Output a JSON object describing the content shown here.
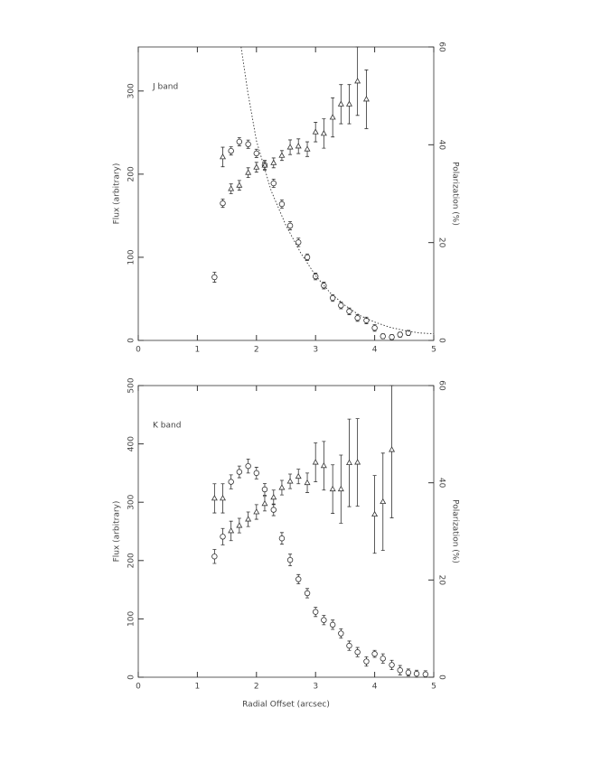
{
  "chart_data": [
    {
      "type": "scatter",
      "title": "J band",
      "y_label": "Flux (arbitrary)",
      "y2_label": "Polarization (%)",
      "xlim": [
        0,
        5
      ],
      "xticks": [
        0,
        1,
        2,
        3,
        4,
        5
      ],
      "ylim": [
        0,
        353
      ],
      "yticks": [
        0,
        100,
        200,
        300
      ],
      "y2lim": [
        0,
        60
      ],
      "y2ticks": [
        0,
        20,
        40,
        60
      ],
      "series": [
        {
          "marker": "circle",
          "x": [
            1.29,
            1.43,
            1.57,
            1.71,
            1.86,
            2.0,
            2.14,
            2.29,
            2.43,
            2.57,
            2.71,
            2.86,
            3.0,
            3.14,
            3.29,
            3.43,
            3.57,
            3.71,
            3.86,
            4.0,
            4.14,
            4.29,
            4.43,
            4.57
          ],
          "values": [
            76,
            165,
            228,
            239,
            236,
            225,
            211,
            189,
            164,
            138,
            118,
            100,
            77,
            66,
            51,
            42,
            35,
            27,
            24,
            15,
            5,
            4,
            7,
            9
          ],
          "errors": [
            6,
            5,
            5,
            5,
            5,
            5,
            5,
            5,
            5,
            5,
            5,
            4,
            4,
            4,
            4,
            4,
            4,
            4,
            4,
            4,
            3,
            3,
            3,
            3
          ]
        },
        {
          "marker": "triangle",
          "axis": "y2",
          "x": [
            1.43,
            1.57,
            1.71,
            1.86,
            2.0,
            2.14,
            2.29,
            2.43,
            2.57,
            2.71,
            2.86,
            3.0,
            3.14,
            3.29,
            3.43,
            3.57,
            3.71,
            3.86
          ],
          "values": [
            37.5,
            31.0,
            31.7,
            34.3,
            35.4,
            35.8,
            36.3,
            37.8,
            39.5,
            39.7,
            39.1,
            42.6,
            42.3,
            45.6,
            48.3,
            48.3,
            53.0,
            49.3
          ],
          "errors": [
            2,
            1,
            1,
            1,
            1,
            1,
            1,
            1,
            1.5,
            1.5,
            1.5,
            2,
            3,
            4,
            4,
            4,
            7,
            6
          ]
        },
        {
          "line": "dotted",
          "x": [
            1.74,
            1.85,
            2.0,
            2.25,
            2.5,
            2.75,
            3.0,
            3.25,
            3.5,
            3.75,
            4.0,
            4.25,
            4.5,
            4.75,
            5.0
          ],
          "values": [
            353,
            300,
            240,
            180,
            138,
            105,
            78,
            57,
            42,
            30,
            22,
            16,
            12,
            9,
            8
          ]
        }
      ]
    },
    {
      "type": "scatter",
      "title": "K band",
      "x_label": "Radial Offset (arcsec)",
      "y_label": "Flux (arbitrary)",
      "y2_label": "Polarization (%)",
      "xlim": [
        0,
        5
      ],
      "xticks": [
        0,
        1,
        2,
        3,
        4,
        5
      ],
      "ylim": [
        0,
        500
      ],
      "yticks": [
        0,
        100,
        200,
        300,
        400,
        500
      ],
      "y2lim": [
        0,
        60
      ],
      "y2ticks": [
        0,
        20,
        40,
        60
      ],
      "series": [
        {
          "marker": "circle",
          "x": [
            1.29,
            1.43,
            1.57,
            1.71,
            1.86,
            2.0,
            2.14,
            2.29,
            2.43,
            2.57,
            2.71,
            2.86,
            3.0,
            3.14,
            3.29,
            3.43,
            3.57,
            3.71,
            3.86,
            4.0,
            4.14,
            4.29,
            4.43,
            4.57,
            4.71,
            4.86
          ],
          "values": [
            207,
            241,
            335,
            352,
            362,
            350,
            322,
            287,
            238,
            201,
            168,
            144,
            112,
            98,
            90,
            75,
            54,
            43,
            27,
            40,
            32,
            21,
            12,
            8,
            6,
            5
          ],
          "errors": [
            12,
            14,
            12,
            10,
            12,
            10,
            10,
            10,
            10,
            10,
            8,
            8,
            8,
            8,
            8,
            8,
            8,
            8,
            8,
            6,
            8,
            8,
            8,
            6,
            6,
            6
          ]
        },
        {
          "marker": "triangle",
          "axis": "y2",
          "x": [
            1.29,
            1.43,
            1.57,
            1.71,
            1.86,
            2.0,
            2.14,
            2.29,
            2.43,
            2.57,
            2.71,
            2.86,
            3.0,
            3.14,
            3.29,
            3.43,
            3.57,
            3.71,
            4.0,
            4.14,
            4.29
          ],
          "values": [
            36.8,
            36.8,
            30.1,
            31.2,
            32.5,
            34.0,
            35.7,
            37.0,
            39.0,
            40.3,
            41.3,
            40.0,
            44.2,
            43.5,
            38.7,
            38.7,
            44.1,
            44.2,
            33.5,
            36.1,
            46.8
          ],
          "errors": [
            3,
            3,
            2,
            1.5,
            1.5,
            1.5,
            1.5,
            1.5,
            1.5,
            1.5,
            1.5,
            2,
            4,
            5,
            5,
            7,
            9,
            9,
            8,
            10,
            14
          ]
        }
      ]
    }
  ]
}
